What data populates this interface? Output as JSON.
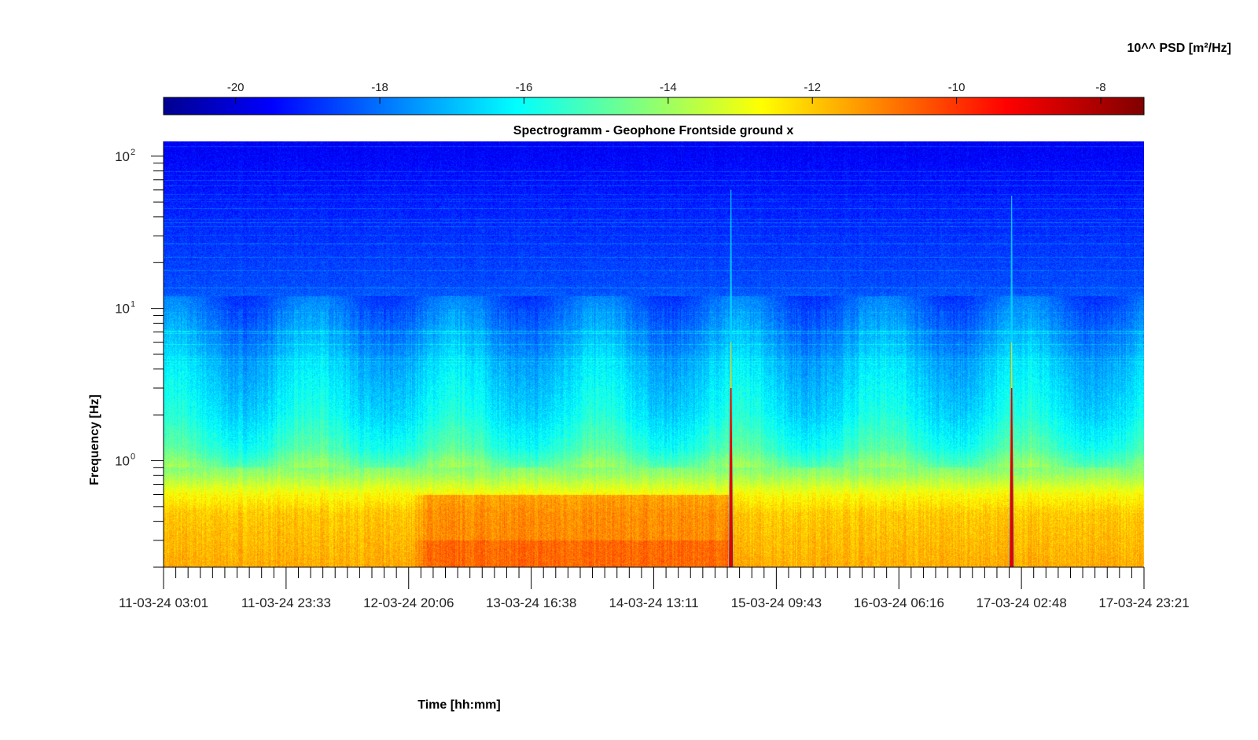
{
  "chart_data": {
    "type": "heatmap",
    "title": "Spectrogramm - Geophone Frontside ground x",
    "xlabel": "Time [hh:mm]",
    "ylabel": "Frequency [Hz]",
    "colorbar_label": "10^^ PSD [m²/Hz]",
    "colormap": "jet",
    "clim": [
      -21,
      -7.4
    ],
    "colorbar_ticks": [
      -20,
      -18,
      -16,
      -14,
      -12,
      -10,
      -8
    ],
    "yscale": "log",
    "ylim": [
      0.2,
      125
    ],
    "y_ticks": [
      {
        "base": "10",
        "exp": "0",
        "value": 1
      },
      {
        "base": "10",
        "exp": "1",
        "value": 10
      },
      {
        "base": "10",
        "exp": "2",
        "value": 100
      }
    ],
    "x_ticks": [
      "11-03-24 03:01",
      "11-03-24 23:33",
      "12-03-24 20:06",
      "13-03-24 16:38",
      "14-03-24 13:11",
      "15-03-24 09:43",
      "16-03-24 06:16",
      "17-03-24 02:48",
      "17-03-24 23:21"
    ],
    "grid": false,
    "background_profile": [
      {
        "f": 120,
        "level": -19.4
      },
      {
        "f": 50,
        "level": -18.9
      },
      {
        "f": 14,
        "level": -18.3
      },
      {
        "f": 6,
        "level": -17.2
      },
      {
        "f": 4,
        "level": -16.6
      },
      {
        "f": 2,
        "level": -16.0
      },
      {
        "f": 1.2,
        "level": -15.2
      },
      {
        "f": 0.8,
        "level": -13.8
      },
      {
        "f": 0.6,
        "level": -12.5
      },
      {
        "f": 0.45,
        "level": -11.8
      },
      {
        "f": 0.2,
        "level": -11.4
      }
    ],
    "events": [
      {
        "time": "15-03-24 02:07",
        "peak_level": -7.8,
        "top_frequency": 60
      },
      {
        "time": "17-03-24 01:10",
        "peak_level": -7.8,
        "top_frequency": 55
      }
    ],
    "low_freq_high_energy_period": {
      "start": "12-03-24 20:06",
      "end": "15-03-24 02:07",
      "level": -10.5
    }
  }
}
